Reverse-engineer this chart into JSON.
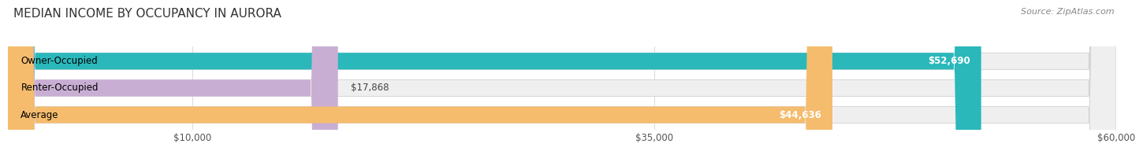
{
  "title": "MEDIAN INCOME BY OCCUPANCY IN AURORA",
  "source": "Source: ZipAtlas.com",
  "categories": [
    "Owner-Occupied",
    "Renter-Occupied",
    "Average"
  ],
  "values": [
    52690,
    17868,
    44636
  ],
  "bar_colors": [
    "#2ab8bb",
    "#c9aed4",
    "#f5bc6e"
  ],
  "bar_bg_color": "#efefef",
  "value_labels": [
    "$52,690",
    "$17,868",
    "$44,636"
  ],
  "xlim": [
    0,
    60000
  ],
  "xticks": [
    10000,
    35000,
    60000
  ],
  "xtick_labels": [
    "$10,000",
    "$35,000",
    "$60,000"
  ],
  "title_fontsize": 11,
  "source_fontsize": 8,
  "label_fontsize": 8.5,
  "bar_height": 0.62,
  "bg_color": "#ffffff"
}
